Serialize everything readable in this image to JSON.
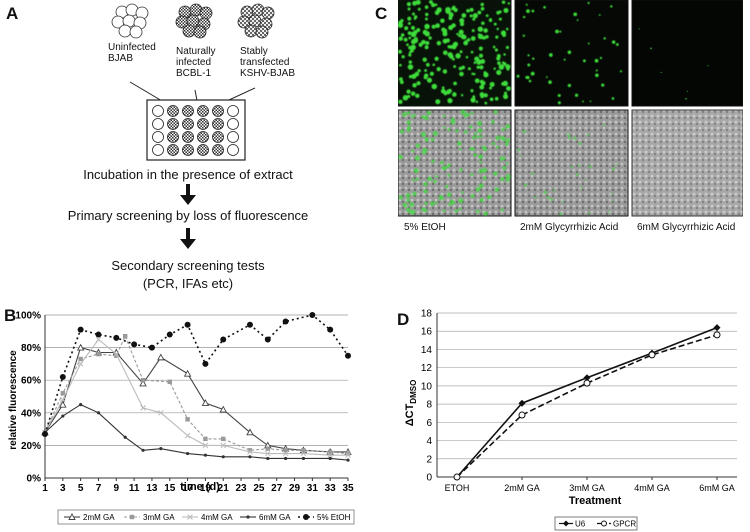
{
  "panels": {
    "a": "A",
    "b": "B",
    "c": "C",
    "d": "D"
  },
  "panel_a": {
    "cells": [
      {
        "line1": "Uninfected",
        "line2": "BJAB",
        "line3": ""
      },
      {
        "line1": "Naturally",
        "line2": "infected",
        "line3": "BCBL-1"
      },
      {
        "line1": "Stably",
        "line2": "transfected",
        "line3": "KSHV-BJAB"
      }
    ],
    "step1": "Incubation in the presence of extract",
    "step2": "Primary screening by loss of fluorescence",
    "step3_line1": "Secondary screening tests",
    "step3_line2": "(PCR, IFAs etc)"
  },
  "panel_c": {
    "labels": [
      "5% EtOH",
      "2mM Glycyrrhizic Acid",
      "6mM Glycyrrhizic Acid"
    ],
    "colors": {
      "fluorescence": "#3ddc3a",
      "background": "#050805",
      "brightfield": "#9a9a9a"
    }
  },
  "chart_data": [
    {
      "type": "line",
      "panel": "B",
      "xlabel": "time (d)",
      "ylabel": "relative fluorescence",
      "ylim": [
        0,
        100
      ],
      "x_ticks": [
        1,
        3,
        5,
        7,
        9,
        11,
        13,
        15,
        17,
        19,
        21,
        23,
        25,
        27,
        29,
        31,
        33,
        35
      ],
      "y_ticks": [
        "0%",
        "20%",
        "40%",
        "60%",
        "80%",
        "100%"
      ],
      "grid": "horizontal",
      "legend_position": "bottom",
      "series": [
        {
          "name": "2mM GA",
          "x": [
            1,
            3,
            5,
            7,
            9,
            12,
            14,
            17,
            19,
            21,
            24,
            26,
            28,
            30,
            33,
            35
          ],
          "values": [
            28,
            45,
            80,
            77,
            77,
            58,
            74,
            64,
            46,
            42,
            28,
            20,
            18,
            17,
            16,
            16
          ]
        },
        {
          "name": "3mM GA",
          "x": [
            1,
            3,
            5,
            7,
            9,
            10,
            12,
            15,
            17,
            19,
            21,
            24,
            26,
            28,
            30,
            33,
            35
          ],
          "values": [
            28,
            52,
            73,
            76,
            75,
            87,
            60,
            59,
            36,
            24,
            24,
            17,
            18,
            17,
            17,
            16,
            15
          ]
        },
        {
          "name": "4mM GA",
          "x": [
            1,
            3,
            5,
            7,
            9,
            12,
            14,
            17,
            19,
            21,
            24,
            26,
            28,
            30,
            33,
            35
          ],
          "values": [
            28,
            48,
            70,
            85,
            76,
            43,
            40,
            26,
            20,
            20,
            16,
            15,
            15,
            15,
            14,
            14
          ]
        },
        {
          "name": "6mM GA",
          "x": [
            1,
            3,
            5,
            7,
            10,
            12,
            14,
            17,
            19,
            21,
            24,
            26,
            28,
            30,
            33,
            35
          ],
          "values": [
            28,
            38,
            45,
            40,
            25,
            17,
            18,
            15,
            14,
            13,
            13,
            12,
            12,
            12,
            12,
            11
          ]
        },
        {
          "name": "5% EtOH",
          "x": [
            1,
            3,
            5,
            7,
            9,
            11,
            13,
            15,
            17,
            19,
            21,
            24,
            26,
            28,
            31,
            33,
            35
          ],
          "values": [
            27,
            62,
            91,
            88,
            86,
            82,
            80,
            88,
            94,
            70,
            85,
            94,
            85,
            96,
            100,
            91,
            75
          ]
        }
      ]
    },
    {
      "type": "line",
      "panel": "D",
      "xlabel": "Treatment",
      "ylabel": "ΔCT",
      "ylabel_sub": "DMSO",
      "categories": [
        "ETOH",
        "2mM GA",
        "3mM GA",
        "4mM GA",
        "6mM GA"
      ],
      "ylim": [
        0,
        18
      ],
      "y_ticks": [
        0,
        2,
        4,
        6,
        8,
        10,
        12,
        14,
        16,
        18
      ],
      "grid": "horizontal",
      "legend_position": "bottom",
      "series": [
        {
          "name": "U6",
          "values": [
            0,
            8.1,
            10.9,
            13.6,
            16.4
          ]
        },
        {
          "name": "GPCR",
          "values": [
            0,
            6.8,
            10.3,
            13.4,
            15.6
          ]
        }
      ]
    }
  ]
}
